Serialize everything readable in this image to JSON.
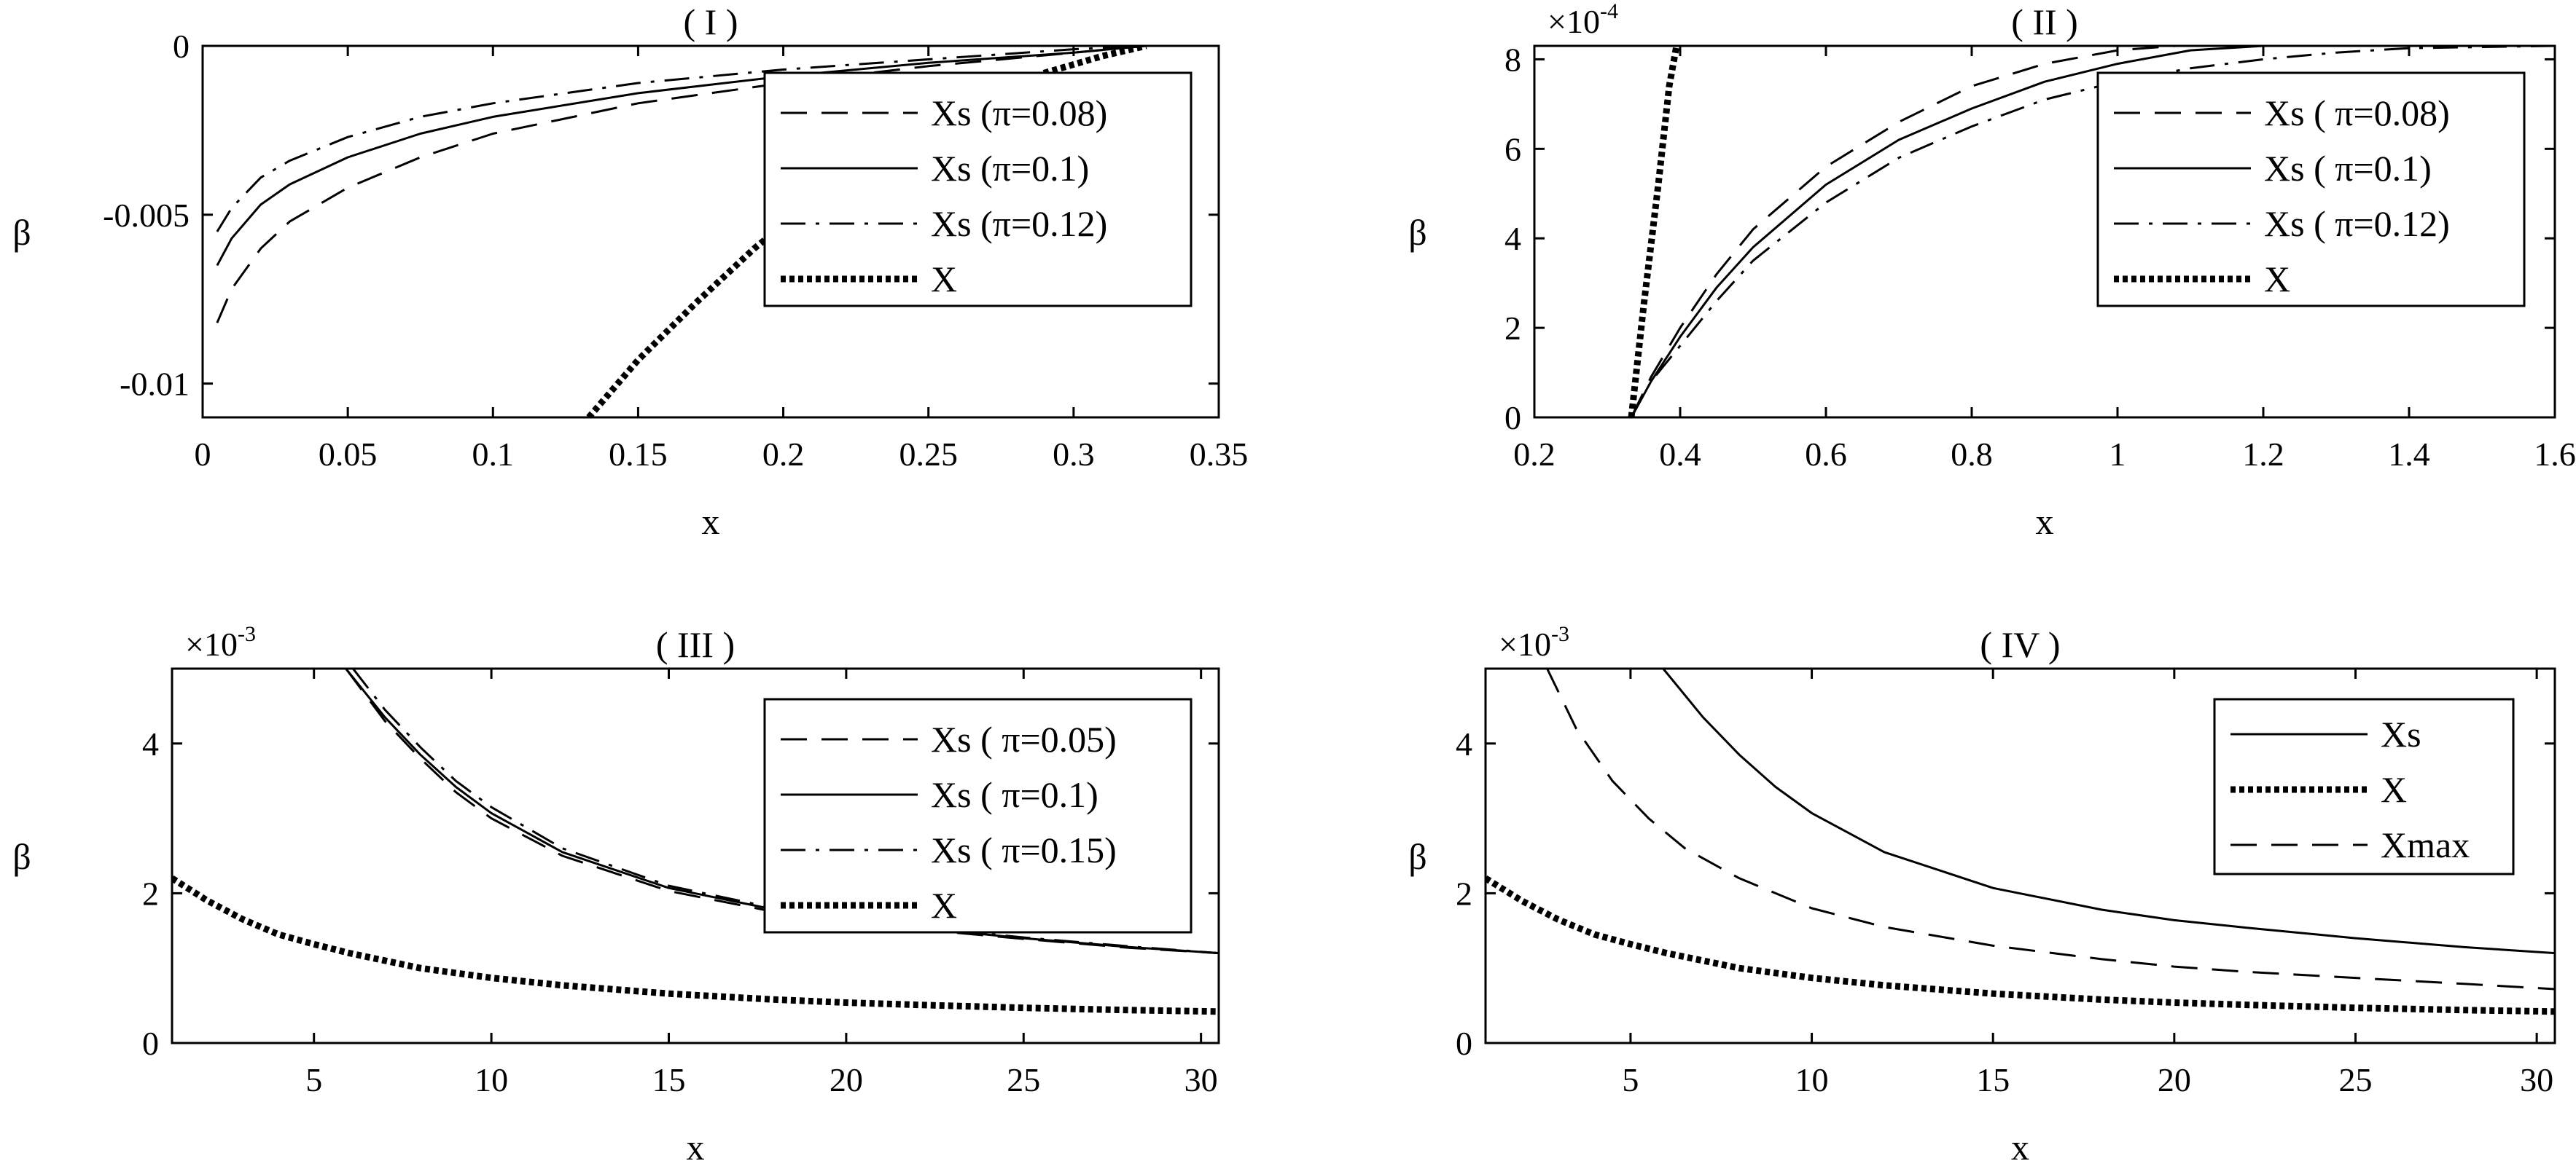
{
  "chart_data": [
    {
      "type": "line",
      "title": "( I )",
      "xlabel": "x",
      "ylabel": "β",
      "xlim": [
        0,
        0.35
      ],
      "ylim": [
        -0.011,
        0
      ],
      "x_ticks": [
        0,
        0.05,
        0.1,
        0.15,
        0.2,
        0.25,
        0.3,
        0.35
      ],
      "x_tick_labels": [
        "0",
        "0.05",
        "0.1",
        "0.15",
        "0.2",
        "0.25",
        "0.3",
        "0.35"
      ],
      "y_ticks": [
        0,
        -0.005,
        -0.01
      ],
      "y_tick_labels": [
        "0",
        "-0.005",
        "-0.01"
      ],
      "exponent_label": "",
      "legend_position": "right",
      "series": [
        {
          "name": "Xs (π=0.08)",
          "style": "dashed",
          "x": [
            0.005,
            0.01,
            0.02,
            0.03,
            0.05,
            0.075,
            0.1,
            0.15,
            0.2,
            0.25,
            0.3,
            0.325
          ],
          "y": [
            -0.0082,
            -0.0072,
            -0.006,
            -0.0052,
            -0.0042,
            -0.0033,
            -0.0026,
            -0.0017,
            -0.0011,
            -0.0006,
            -0.0002,
            0
          ]
        },
        {
          "name": "Xs (π=0.1)",
          "style": "solid",
          "x": [
            0.005,
            0.01,
            0.02,
            0.03,
            0.05,
            0.075,
            0.1,
            0.15,
            0.2,
            0.25,
            0.3,
            0.325
          ],
          "y": [
            -0.0065,
            -0.0057,
            -0.0047,
            -0.0041,
            -0.0033,
            -0.0026,
            -0.0021,
            -0.0014,
            -0.0009,
            -0.0005,
            -0.0002,
            0
          ]
        },
        {
          "name": "Xs (π=0.12)",
          "style": "dashdot",
          "x": [
            0.005,
            0.01,
            0.02,
            0.03,
            0.05,
            0.075,
            0.1,
            0.15,
            0.2,
            0.25,
            0.3,
            0.325
          ],
          "y": [
            -0.0055,
            -0.0048,
            -0.0039,
            -0.0034,
            -0.0027,
            -0.0021,
            -0.0017,
            -0.0011,
            -0.0007,
            -0.0004,
            -0.0001,
            0
          ]
        },
        {
          "name": "X",
          "style": "dotted",
          "x": [
            0.133,
            0.15,
            0.17,
            0.19,
            0.21,
            0.23,
            0.25,
            0.27,
            0.29,
            0.31,
            0.325
          ],
          "y": [
            -0.011,
            -0.0093,
            -0.0076,
            -0.006,
            -0.0046,
            -0.0034,
            -0.0024,
            -0.0015,
            -0.0008,
            -0.0003,
            0
          ]
        }
      ]
    },
    {
      "type": "line",
      "title": "( II )",
      "xlabel": "x",
      "ylabel": "β",
      "xlim": [
        0.2,
        1.6
      ],
      "ylim": [
        0,
        8.3
      ],
      "x_ticks": [
        0.2,
        0.4,
        0.6,
        0.8,
        1,
        1.2,
        1.4,
        1.6
      ],
      "x_tick_labels": [
        "0.2",
        "0.4",
        "0.6",
        "0.8",
        "1",
        "1.2",
        "1.4",
        "1.6"
      ],
      "y_ticks": [
        0,
        2,
        4,
        6,
        8
      ],
      "y_tick_labels": [
        "0",
        "2",
        "4",
        "6",
        "8"
      ],
      "exponent_label": "×10",
      "exponent_power": "-4",
      "legend_position": "right",
      "series": [
        {
          "name": "Xs ( π=0.08)",
          "style": "dashed",
          "x": [
            0.333,
            0.36,
            0.4,
            0.45,
            0.5,
            0.6,
            0.7,
            0.8,
            0.9,
            1.0,
            1.08,
            1.6
          ],
          "y": [
            0,
            0.9,
            2.0,
            3.2,
            4.2,
            5.6,
            6.6,
            7.4,
            7.9,
            8.2,
            8.3,
            8.3
          ]
        },
        {
          "name": "Xs ( π=0.1)",
          "style": "solid",
          "x": [
            0.333,
            0.36,
            0.4,
            0.45,
            0.5,
            0.6,
            0.7,
            0.8,
            0.9,
            1.0,
            1.1,
            1.2,
            1.6
          ],
          "y": [
            0,
            0.8,
            1.8,
            2.9,
            3.8,
            5.2,
            6.2,
            6.9,
            7.5,
            7.9,
            8.2,
            8.3,
            8.3
          ]
        },
        {
          "name": "Xs ( π=0.12)",
          "style": "dashdot",
          "x": [
            0.333,
            0.36,
            0.4,
            0.45,
            0.5,
            0.6,
            0.7,
            0.8,
            0.9,
            1.0,
            1.1,
            1.2,
            1.3,
            1.4,
            1.6
          ],
          "y": [
            0,
            0.8,
            1.6,
            2.6,
            3.5,
            4.8,
            5.8,
            6.5,
            7.1,
            7.5,
            7.8,
            8.0,
            8.15,
            8.25,
            8.3
          ]
        },
        {
          "name": "X",
          "style": "dotted",
          "x": [
            0.333,
            0.35,
            0.37,
            0.385,
            0.395
          ],
          "y": [
            0,
            2.5,
            5.2,
            7.4,
            8.3
          ]
        }
      ]
    },
    {
      "type": "line",
      "title": "( III )",
      "xlabel": "x",
      "ylabel": "β",
      "xlim": [
        1,
        30.5
      ],
      "ylim": [
        0,
        5
      ],
      "x_ticks": [
        5,
        10,
        15,
        20,
        25,
        30
      ],
      "x_tick_labels": [
        "5",
        "10",
        "15",
        "20",
        "25",
        "30"
      ],
      "y_ticks": [
        0,
        2,
        4
      ],
      "y_tick_labels": [
        "0",
        "2",
        "4"
      ],
      "exponent_label": "×10",
      "exponent_power": "-3",
      "legend_position": "right",
      "series": [
        {
          "name": "Xs ( π=0.05)",
          "style": "dashed",
          "x": [
            5.9,
            7,
            8,
            9,
            10,
            12,
            15,
            18,
            20,
            22,
            25,
            28,
            30.5
          ],
          "y": [
            5.0,
            4.3,
            3.8,
            3.35,
            3.0,
            2.5,
            2.03,
            1.75,
            1.62,
            1.52,
            1.39,
            1.27,
            1.2
          ]
        },
        {
          "name": "Xs ( π=0.1)",
          "style": "solid",
          "x": [
            5.9,
            7,
            8,
            9,
            10,
            12,
            15,
            18,
            20,
            22,
            25,
            28,
            30.5
          ],
          "y": [
            5.0,
            4.35,
            3.85,
            3.42,
            3.07,
            2.55,
            2.07,
            1.78,
            1.64,
            1.54,
            1.4,
            1.28,
            1.2
          ]
        },
        {
          "name": "Xs ( π=0.15)",
          "style": "dashdot",
          "x": [
            6.1,
            7,
            8,
            9,
            10,
            12,
            15,
            18,
            20,
            22,
            25,
            28,
            30.5
          ],
          "y": [
            5.0,
            4.45,
            3.95,
            3.5,
            3.15,
            2.6,
            2.1,
            1.8,
            1.65,
            1.55,
            1.41,
            1.29,
            1.2
          ]
        },
        {
          "name": "X",
          "style": "dotted",
          "x": [
            1,
            2,
            3,
            4,
            5,
            6,
            8,
            10,
            12,
            15,
            18,
            20,
            22,
            25,
            28,
            30.5
          ],
          "y": [
            2.2,
            1.9,
            1.65,
            1.45,
            1.32,
            1.2,
            1.0,
            0.87,
            0.77,
            0.66,
            0.58,
            0.54,
            0.51,
            0.47,
            0.44,
            0.42
          ]
        }
      ]
    },
    {
      "type": "line",
      "title": "( IV )",
      "xlabel": "x",
      "ylabel": "β",
      "xlim": [
        1,
        30.5
      ],
      "ylim": [
        0,
        5
      ],
      "x_ticks": [
        5,
        10,
        15,
        20,
        25,
        30
      ],
      "x_tick_labels": [
        "5",
        "10",
        "15",
        "20",
        "25",
        "30"
      ],
      "y_ticks": [
        0,
        2,
        4
      ],
      "y_tick_labels": [
        "0",
        "2",
        "4"
      ],
      "exponent_label": "×10",
      "exponent_power": "-3",
      "legend_position": "top-right",
      "series": [
        {
          "name": "Xs",
          "style": "solid",
          "x": [
            5.9,
            7,
            8,
            9,
            10,
            12,
            15,
            18,
            20,
            22,
            25,
            28,
            30.5
          ],
          "y": [
            5.0,
            4.35,
            3.85,
            3.42,
            3.07,
            2.55,
            2.07,
            1.78,
            1.64,
            1.54,
            1.4,
            1.28,
            1.2
          ]
        },
        {
          "name": "X",
          "style": "dotted",
          "x": [
            1,
            2,
            3,
            4,
            5,
            6,
            8,
            10,
            12,
            15,
            18,
            20,
            22,
            25,
            28,
            30.5
          ],
          "y": [
            2.2,
            1.9,
            1.65,
            1.45,
            1.32,
            1.2,
            1.0,
            0.87,
            0.77,
            0.66,
            0.58,
            0.54,
            0.51,
            0.47,
            0.44,
            0.42
          ]
        },
        {
          "name": "Xmax",
          "style": "dashed",
          "x": [
            2.7,
            3.5,
            4.5,
            5.5,
            6.5,
            8,
            10,
            12,
            15,
            18,
            20,
            22,
            25,
            28,
            30.5
          ],
          "y": [
            5.0,
            4.2,
            3.5,
            3.0,
            2.6,
            2.2,
            1.8,
            1.55,
            1.3,
            1.12,
            1.02,
            0.95,
            0.87,
            0.79,
            0.72
          ]
        }
      ]
    }
  ]
}
